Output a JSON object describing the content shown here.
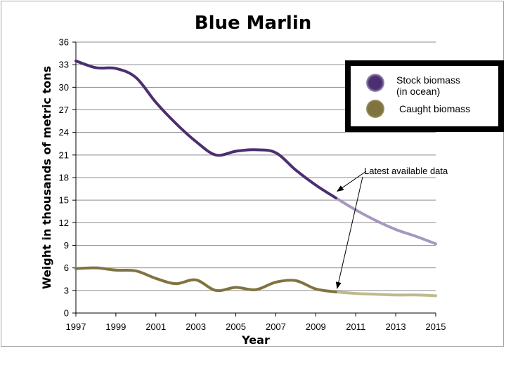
{
  "chart_data": {
    "type": "line",
    "title": "Blue Marlin",
    "xlabel": "Year",
    "ylabel": "Weight in thousands of metric tons",
    "xlim": [
      1997,
      2015
    ],
    "ylim": [
      0,
      36
    ],
    "x_ticks": [
      "1997",
      "1999",
      "2001",
      "2003",
      "2005",
      "2007",
      "2009",
      "2011",
      "2013",
      "2015"
    ],
    "y_ticks": [
      "0",
      "3",
      "6",
      "9",
      "12",
      "15",
      "18",
      "21",
      "24",
      "27",
      "30",
      "33",
      "36"
    ],
    "grid": "horizontal",
    "legend_position": "top-right",
    "series": [
      {
        "name": "Stock biomass (in ocean)",
        "legend_lines": [
          "Stock biomass",
          "(in ocean)"
        ],
        "color": "#4b2f6f",
        "projection_color": "#a598c0",
        "x": [
          1997,
          1998,
          1999,
          2000,
          2001,
          2002,
          2003,
          2004,
          2005,
          2006,
          2007,
          2008,
          2009,
          2010
        ],
        "values": [
          33.5,
          32.6,
          32.5,
          31.3,
          28.0,
          25.2,
          22.8,
          21.0,
          21.5,
          21.7,
          21.3,
          19.0,
          17.0,
          15.3
        ],
        "projection_x": [
          2010,
          2011,
          2012,
          2013,
          2014,
          2015
        ],
        "projection_values": [
          15.3,
          13.7,
          12.3,
          11.1,
          10.2,
          9.2
        ]
      },
      {
        "name": "Caught biomass",
        "legend_lines": [
          "Caught biomass"
        ],
        "color": "#7f7440",
        "projection_color": "#bfb98f",
        "x": [
          1997,
          1998,
          1999,
          2000,
          2001,
          2002,
          2003,
          2004,
          2005,
          2006,
          2007,
          2008,
          2009,
          2010
        ],
        "values": [
          5.9,
          6.0,
          5.7,
          5.6,
          4.6,
          3.9,
          4.4,
          3.0,
          3.4,
          3.1,
          4.1,
          4.3,
          3.2,
          2.8
        ],
        "projection_x": [
          2010,
          2011,
          2012,
          2013,
          2014,
          2015
        ],
        "projection_values": [
          2.8,
          2.6,
          2.5,
          2.4,
          2.4,
          2.3
        ]
      }
    ],
    "annotation": {
      "text": "Latest available data",
      "targets_x": [
        2010,
        2010
      ],
      "targets_y": [
        15.8,
        2.9
      ]
    }
  }
}
